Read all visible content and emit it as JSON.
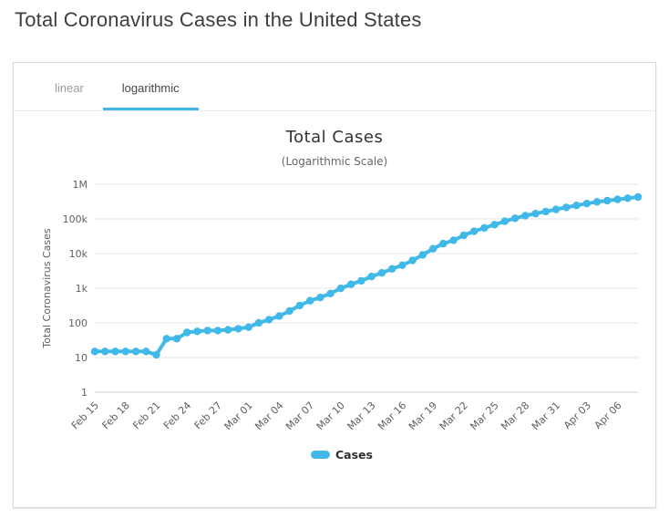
{
  "page": {
    "title": "Total Coronavirus Cases in the United States"
  },
  "tabs": [
    {
      "label": "linear",
      "active": false
    },
    {
      "label": "logarithmic",
      "active": true
    }
  ],
  "colors": {
    "accent_blue": "#41b9e8",
    "grid": "#e6e6e6",
    "axis_line": "#d0d0d0",
    "axis_text": "#606060",
    "legend_text": "#2f2f2f"
  },
  "chart_data": {
    "type": "line",
    "title": "Total Cases",
    "subtitle": "(Logarithmic Scale)",
    "ylabel": "Total Coronavirus Cases",
    "xlabel": "",
    "yscale": "log",
    "ylim": [
      1,
      1000000
    ],
    "y_tick_labels": [
      "1M",
      "100k",
      "10k",
      "1k",
      "100",
      "10",
      "1"
    ],
    "x_label_every": 3,
    "grid": true,
    "legend_position": "bottom",
    "x": [
      "Feb 15",
      "Feb 16",
      "Feb 17",
      "Feb 18",
      "Feb 19",
      "Feb 20",
      "Feb 21",
      "Feb 22",
      "Feb 23",
      "Feb 24",
      "Feb 25",
      "Feb 26",
      "Feb 27",
      "Feb 28",
      "Feb 29",
      "Mar 01",
      "Mar 02",
      "Mar 03",
      "Mar 04",
      "Mar 05",
      "Mar 06",
      "Mar 07",
      "Mar 08",
      "Mar 09",
      "Mar 10",
      "Mar 11",
      "Mar 12",
      "Mar 13",
      "Mar 14",
      "Mar 15",
      "Mar 16",
      "Mar 17",
      "Mar 18",
      "Mar 19",
      "Mar 20",
      "Mar 21",
      "Mar 22",
      "Mar 23",
      "Mar 24",
      "Mar 25",
      "Mar 26",
      "Mar 27",
      "Mar 28",
      "Mar 29",
      "Mar 30",
      "Mar 31",
      "Apr 01",
      "Apr 02",
      "Apr 03",
      "Apr 04",
      "Apr 05",
      "Apr 06",
      "Apr 07",
      "Apr 08"
    ],
    "series": [
      {
        "name": "Cases",
        "color": "#41b9e8",
        "values": [
          15,
          15,
          15,
          15,
          15,
          15,
          12,
          35,
          35,
          53,
          57,
          60,
          60,
          63,
          68,
          75,
          100,
          124,
          158,
          221,
          319,
          435,
          541,
          704,
          994,
          1301,
          1630,
          2183,
          2770,
          3613,
          4596,
          6344,
          9197,
          13779,
          19367,
          24192,
          33592,
          43781,
          54856,
          68211,
          85435,
          104126,
          123578,
          142070,
          163788,
          188172,
          215003,
          244877,
          277161,
          311357,
          336851,
          366614,
          396223,
          429052
        ]
      }
    ]
  }
}
